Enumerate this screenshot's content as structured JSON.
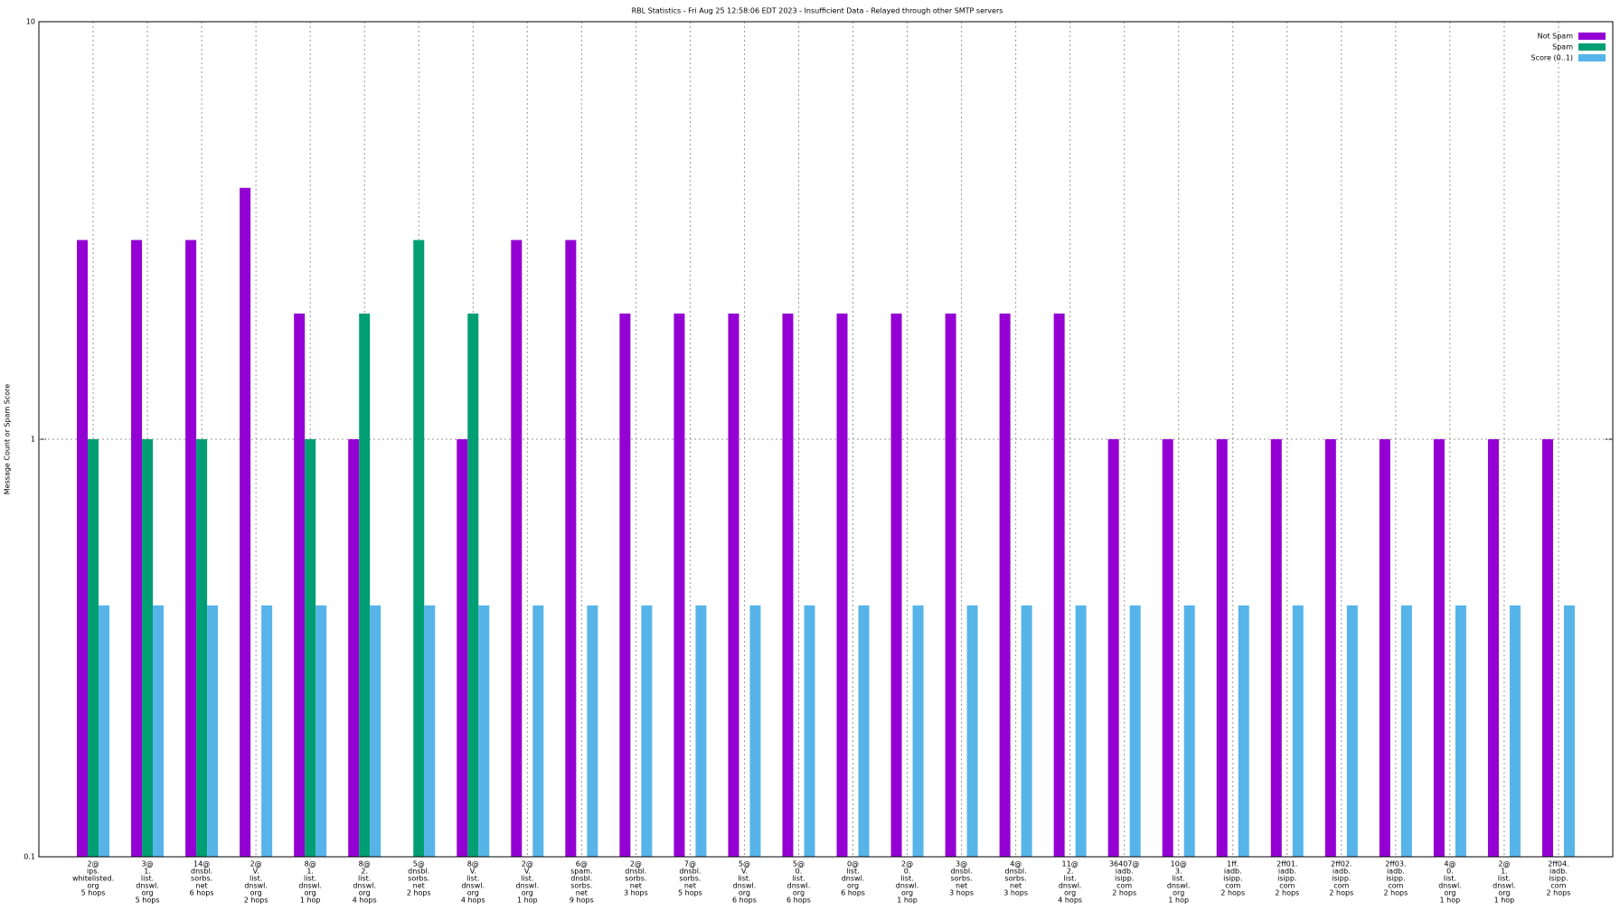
{
  "chart_data": {
    "type": "bar",
    "title": "RBL Statistics - Fri Aug 25 12:58:06 EDT 2023 - Insufficient Data - Relayed through other SMTP servers",
    "y_label": "Message Count or Spam Score",
    "log_scale": true,
    "grid": true,
    "legend_position": "top-right",
    "ylim": [
      0.1,
      10
    ],
    "yticks": [
      0.1,
      1,
      10
    ],
    "categories": [
      [
        "2@",
        "ips.",
        "whitelisted.",
        "org",
        "5 hops"
      ],
      [
        "3@",
        "1.",
        "list.",
        "dnswl.",
        "org",
        "5 hops"
      ],
      [
        "14@",
        "dnsbl.",
        "sorbs.",
        "net",
        "6 hops"
      ],
      [
        "2@",
        "V.",
        "list.",
        "dnswl.",
        "org",
        "2 hops"
      ],
      [
        "8@",
        "1.",
        "list.",
        "dnswl.",
        "org",
        "1 hop"
      ],
      [
        "8@",
        "2.",
        "list.",
        "dnswl.",
        "org",
        "4 hops"
      ],
      [
        "5@",
        "dnsbl.",
        "sorbs.",
        "net",
        "2 hops"
      ],
      [
        "8@",
        "V.",
        "list.",
        "dnswl.",
        "org",
        "4 hops"
      ],
      [
        "2@",
        "V.",
        "list.",
        "dnswl.",
        "org",
        "1 hop"
      ],
      [
        "6@",
        "spam.",
        "dnsbl.",
        "sorbs.",
        "net",
        "9 hops"
      ],
      [
        "2@",
        "dnsbl.",
        "sorbs.",
        "net",
        "3 hops"
      ],
      [
        "7@",
        "dnsbl.",
        "sorbs.",
        "net",
        "5 hops"
      ],
      [
        "5@",
        "V.",
        "list.",
        "dnswl.",
        "org",
        "6 hops"
      ],
      [
        "5@",
        "0.",
        "list.",
        "dnswl.",
        "org",
        "6 hops"
      ],
      [
        "0@",
        "list.",
        "dnswl.",
        "org",
        "6 hops"
      ],
      [
        "2@",
        "0.",
        "list.",
        "dnswl.",
        "org",
        "1 hop"
      ],
      [
        "3@",
        "dnsbl.",
        "sorbs.",
        "net",
        "3 hops"
      ],
      [
        "4@",
        "dnsbl.",
        "sorbs.",
        "net",
        "3 hops"
      ],
      [
        "11@",
        "2.",
        "list.",
        "dnswl.",
        "org",
        "4 hops"
      ],
      [
        "36407@",
        "iadb.",
        "isipp.",
        "com",
        "2 hops"
      ],
      [
        "10@",
        "3.",
        "list.",
        "dnswl.",
        "org",
        "1 hop"
      ],
      [
        "1ff.",
        "iadb.",
        "isipp.",
        "com",
        "2 hops"
      ],
      [
        "2ff01.",
        "iadb.",
        "isipp.",
        "com",
        "2 hops"
      ],
      [
        "2ff02.",
        "iadb.",
        "isipp.",
        "com",
        "2 hops"
      ],
      [
        "2ff03.",
        "iadb.",
        "isipp.",
        "com",
        "2 hops"
      ],
      [
        "4@",
        "0.",
        "list.",
        "dnswl.",
        "org",
        "1 hop"
      ],
      [
        "2@",
        "1.",
        "list.",
        "dnswl.",
        "org",
        "1 hop"
      ],
      [
        "2ff04.",
        "iadb.",
        "isipp.",
        "com",
        "2 hops"
      ]
    ],
    "series": [
      {
        "name": "Not Spam",
        "color": "#9400d3",
        "values": [
          3,
          3,
          3,
          4,
          2,
          1,
          null,
          1,
          3,
          3,
          2,
          2,
          2,
          2,
          2,
          2,
          2,
          2,
          2,
          1,
          1,
          1,
          1,
          1,
          1,
          1,
          1,
          1
        ]
      },
      {
        "name": "Spam",
        "color": "#009e73",
        "values": [
          1,
          1,
          1,
          null,
          1,
          2,
          3,
          2,
          null,
          null,
          null,
          null,
          null,
          null,
          null,
          null,
          null,
          null,
          null,
          null,
          null,
          null,
          null,
          null,
          null,
          null,
          null,
          null
        ]
      },
      {
        "name": "Score (0..1)",
        "color": "#56b4e9",
        "values": [
          0.4,
          0.4,
          0.4,
          0.4,
          0.4,
          0.4,
          0.4,
          0.4,
          0.4,
          0.4,
          0.4,
          0.4,
          0.4,
          0.4,
          0.4,
          0.4,
          0.4,
          0.4,
          0.4,
          0.4,
          0.4,
          0.4,
          0.4,
          0.4,
          0.4,
          0.4,
          0.4,
          0.4
        ]
      }
    ]
  }
}
